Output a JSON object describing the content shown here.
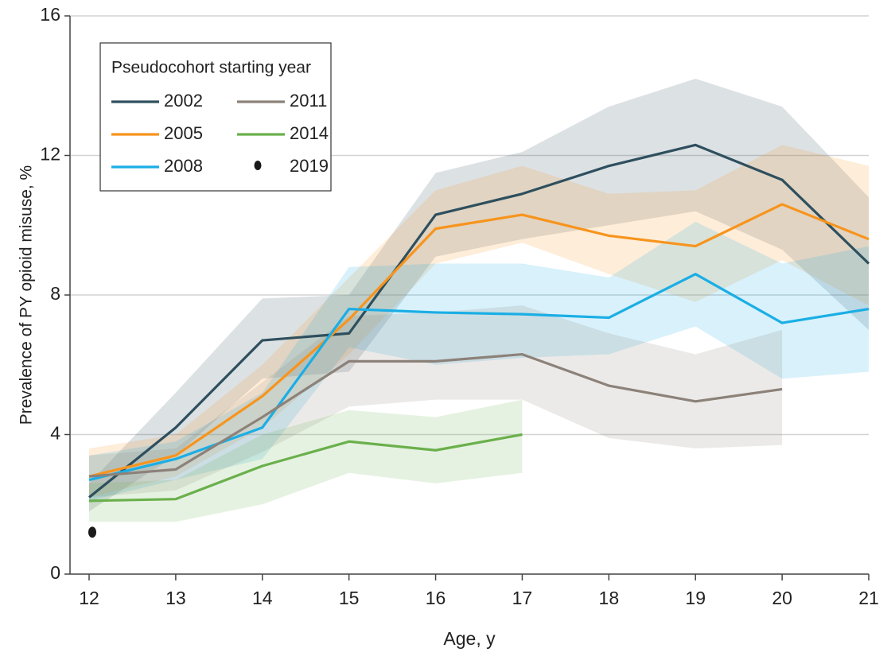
{
  "chart_data": {
    "type": "line",
    "x_label": "Age, y",
    "y_label": "Prevalence of PY opioid misuse, %",
    "legend_title": "Pseudocohort starting year",
    "legend": "upper left",
    "grid": true,
    "x": [
      12,
      13,
      14,
      15,
      16,
      17,
      18,
      19,
      20,
      21
    ],
    "xlim": [
      12,
      21
    ],
    "xticks": [
      12,
      13,
      14,
      15,
      16,
      17,
      18,
      19,
      20,
      21
    ],
    "ylim": [
      0,
      16
    ],
    "yticks": [
      0,
      4,
      8,
      12,
      16
    ],
    "series": [
      {
        "name": "2002",
        "color": "#2e4f5e",
        "values": [
          2.2,
          4.2,
          6.7,
          6.9,
          10.3,
          10.9,
          11.7,
          12.3,
          11.3,
          8.9
        ],
        "upper": [
          2.6,
          5.2,
          7.9,
          8.0,
          11.5,
          12.1,
          13.4,
          14.2,
          13.4,
          10.8
        ],
        "lower": [
          1.8,
          3.4,
          5.6,
          5.8,
          9.1,
          9.6,
          10.0,
          10.4,
          9.3,
          7.0
        ]
      },
      {
        "name": "2005",
        "color": "#f7941d",
        "values": [
          2.8,
          3.4,
          5.1,
          7.3,
          9.9,
          10.3,
          9.7,
          9.4,
          10.6,
          9.6
        ],
        "upper": [
          3.6,
          4.0,
          6.0,
          8.5,
          11.0,
          11.7,
          10.9,
          11.0,
          12.3,
          11.7
        ],
        "lower": [
          2.2,
          2.8,
          4.2,
          6.3,
          8.9,
          9.5,
          8.6,
          7.8,
          9.0,
          7.7
        ]
      },
      {
        "name": "2008",
        "color": "#1aaee5",
        "values": [
          2.7,
          3.3,
          4.2,
          7.6,
          7.5,
          7.45,
          7.35,
          8.6,
          7.2,
          7.6
        ],
        "upper": [
          3.4,
          3.8,
          5.2,
          8.8,
          8.9,
          8.9,
          8.5,
          10.1,
          8.9,
          9.4
        ],
        "lower": [
          2.1,
          2.7,
          3.3,
          6.5,
          6.0,
          6.2,
          6.3,
          7.1,
          5.6,
          5.8
        ]
      },
      {
        "name": "2011",
        "color": "#8c8279",
        "values": [
          2.8,
          3.0,
          4.5,
          6.1,
          6.1,
          6.3,
          5.4,
          4.95,
          5.3,
          null
        ],
        "upper": [
          3.4,
          3.6,
          5.5,
          7.4,
          7.5,
          7.7,
          6.9,
          6.3,
          7.0,
          null
        ],
        "lower": [
          2.2,
          2.4,
          3.5,
          4.8,
          5.0,
          5.0,
          3.9,
          3.6,
          3.7,
          null
        ]
      },
      {
        "name": "2014",
        "color": "#6ab04c",
        "values": [
          2.1,
          2.15,
          3.1,
          3.8,
          3.55,
          4.0,
          null,
          null,
          null,
          null
        ],
        "upper": [
          2.6,
          2.7,
          4.0,
          4.7,
          4.5,
          5.0,
          null,
          null,
          null,
          null
        ],
        "lower": [
          1.5,
          1.5,
          2.0,
          2.9,
          2.6,
          2.9,
          null,
          null,
          null,
          null
        ]
      },
      {
        "name": "2019",
        "color": "#1a1a1a",
        "marker": "dot",
        "values": [
          1.2,
          null,
          null,
          null,
          null,
          null,
          null,
          null,
          null,
          null
        ]
      }
    ]
  }
}
